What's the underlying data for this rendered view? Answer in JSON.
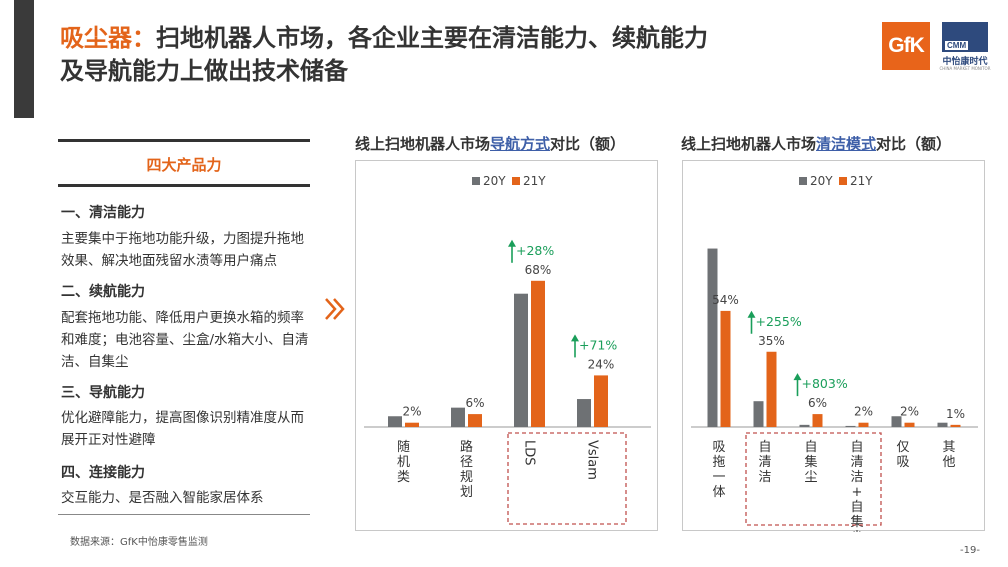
{
  "header": {
    "title_prefix": "吸尘器：",
    "title_line1": "扫地机器人市场，各企业主要在清洁能力、续航能力",
    "title_line2": "及导航能力上做出技术储备"
  },
  "logos": {
    "gfk": "GfK",
    "cmm": "CMM",
    "cmm_cn": "中怡康时代",
    "cmm_en": "CHINA MARKET MONITOR"
  },
  "panel": {
    "heading": "四大产品力",
    "sections": [
      {
        "title": "一、清洁能力",
        "body": "主要集中于拖地功能升级，力图提升拖地效果、解决地面残留水渍等用户痛点"
      },
      {
        "title": "二、续航能力",
        "body": "配套拖地功能、降低用户更换水箱的频率和难度；电池容量、尘盒/水箱大小、自清洁、自集尘"
      },
      {
        "title": "三、导航能力",
        "body": "优化避障能力，提高图像识别精准度从而展开正对性避障"
      },
      {
        "title": "四、连接能力",
        "body": "交互能力、是否融入智能家居体系"
      }
    ]
  },
  "footer": {
    "source": "数据来源：GfK中怡康零售监测",
    "page": "-19-"
  },
  "colors": {
    "y20": "#6e7174",
    "y21": "#e3641a",
    "up": "#1a9e5a",
    "dash": "#c0504d"
  },
  "chart_data": [
    {
      "type": "bar",
      "title_pre": "线上扫地机器人市场",
      "title_hl": "导航方式",
      "title_post": "对比（额）",
      "legend": [
        "20Y",
        "21Y"
      ],
      "ylim": [
        0,
        100
      ],
      "categories": [
        "随机类",
        "路径规划",
        "LDS",
        "Vslam"
      ],
      "category_rotated": [
        false,
        false,
        true,
        true
      ],
      "series": [
        {
          "name": "20Y",
          "values": [
            5,
            9,
            62,
            13
          ]
        },
        {
          "name": "21Y",
          "values": [
            2,
            6,
            68,
            24
          ]
        }
      ],
      "labels": [
        "2%",
        "6%",
        "68%",
        "24%"
      ],
      "growth": [
        null,
        null,
        "+28%",
        "+71%"
      ],
      "highlight": [
        2,
        3
      ]
    },
    {
      "type": "bar",
      "title_pre": "线上扫地机器人市场",
      "title_hl": "清洁模式",
      "title_post": "对比（额）",
      "legend": [
        "20Y",
        "21Y"
      ],
      "ylim": [
        0,
        100
      ],
      "categories": [
        "吸拖一体",
        "自清洁",
        "自集尘",
        "自清洁+自集尘",
        "仅吸",
        "其他"
      ],
      "category_rotated": [
        false,
        false,
        false,
        false,
        false,
        false
      ],
      "series": [
        {
          "name": "20Y",
          "values": [
            83,
            12,
            1,
            0.5,
            5,
            2
          ]
        },
        {
          "name": "21Y",
          "values": [
            54,
            35,
            6,
            2,
            2,
            1
          ]
        }
      ],
      "labels": [
        "54%",
        "35%",
        "6%",
        "2%",
        "2%",
        "1%"
      ],
      "growth": [
        null,
        "+255%",
        "+803%",
        null,
        null,
        null
      ],
      "highlight": [
        1,
        2,
        3
      ]
    }
  ]
}
